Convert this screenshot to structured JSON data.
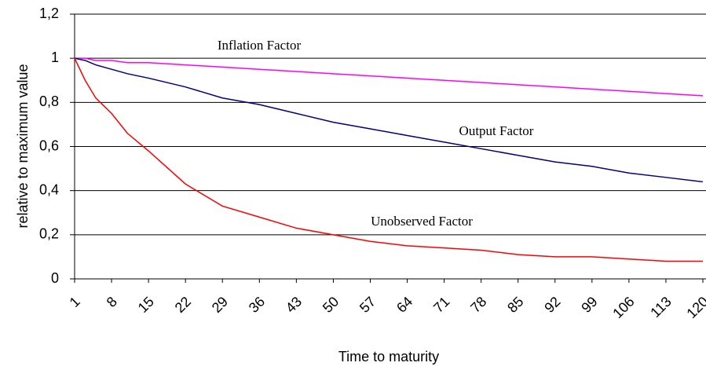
{
  "chart_data": {
    "type": "line",
    "x_label": "Time to maturity",
    "y_label": "relative to maximum value",
    "x": [
      1,
      3,
      5,
      8,
      11,
      15,
      22,
      29,
      36,
      43,
      50,
      57,
      64,
      71,
      78,
      85,
      92,
      99,
      106,
      113,
      120
    ],
    "xlim": [
      1,
      120
    ],
    "xticks": [
      1,
      8,
      15,
      22,
      29,
      36,
      43,
      50,
      57,
      64,
      71,
      78,
      85,
      92,
      99,
      106,
      113,
      120
    ],
    "ylim": [
      0,
      1.2
    ],
    "yticks": [
      0,
      {
        "value": 0.2,
        "label": "0,2"
      },
      {
        "value": 0.4,
        "label": "0,4"
      },
      {
        "value": 0.6,
        "label": "0,6"
      },
      {
        "value": 0.8,
        "label": "0,8"
      },
      1,
      {
        "value": 1.2,
        "label": "1,2"
      }
    ],
    "grid": true,
    "series": [
      {
        "name": "Inflation Factor",
        "color": "#ff00ff",
        "values": [
          1,
          1,
          0.99,
          0.99,
          0.98,
          0.98,
          0.97,
          0.96,
          0.95,
          0.94,
          0.93,
          0.92,
          0.91,
          0.9,
          0.89,
          0.88,
          0.87,
          0.86,
          0.85,
          0.84,
          0.83
        ]
      },
      {
        "name": "Output Factor",
        "color": "#000080",
        "values": [
          1,
          0.99,
          0.97,
          0.95,
          0.93,
          0.91,
          0.87,
          0.82,
          0.79,
          0.75,
          0.71,
          0.68,
          0.65,
          0.62,
          0.59,
          0.56,
          0.53,
          0.51,
          0.48,
          0.46,
          0.44
        ]
      },
      {
        "name": "Unobserved Factor",
        "color": "#ff0000",
        "values": [
          1,
          0.9,
          0.82,
          0.75,
          0.66,
          0.58,
          0.43,
          0.33,
          0.28,
          0.23,
          0.2,
          0.17,
          0.15,
          0.14,
          0.13,
          0.11,
          0.1,
          0.1,
          0.09,
          0.08,
          0.08
        ]
      }
    ]
  }
}
